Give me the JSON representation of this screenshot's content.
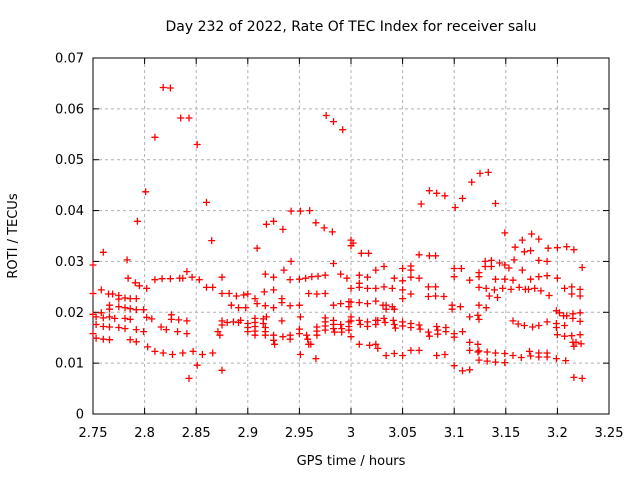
{
  "chart_data": {
    "type": "scatter",
    "title": "Day 232 of 2022, Rate Of TEC Index for receiver salu",
    "xlabel": "GPS time / hours",
    "ylabel": "ROTI / TECUs",
    "xlim": [
      2.75,
      3.25
    ],
    "ylim": [
      0,
      0.07
    ],
    "x_ticks": [
      2.75,
      2.8,
      2.85,
      2.9,
      2.95,
      3,
      3.05,
      3.1,
      3.15,
      3.2,
      3.25
    ],
    "x_tick_labels": [
      "2.75",
      "2.8",
      "2.85",
      "2.9",
      "2.95",
      "3",
      "3.05",
      "3.1",
      "3.15",
      "3.2",
      "3.25"
    ],
    "y_ticks": [
      0,
      0.01,
      0.02,
      0.03,
      0.04,
      0.05,
      0.06,
      0.07
    ],
    "y_tick_labels": [
      "0",
      "0.01",
      "0.02",
      "0.03",
      "0.04",
      "0.05",
      "0.06",
      "0.07"
    ],
    "grid": true,
    "legend": "none",
    "marker": "plus",
    "marker_color": "#ff0000",
    "grid_color": "#b0b0b0",
    "border_color": "#000000",
    "background_color": "#ffffff",
    "points": [
      [
        2.793,
        0.0379
      ],
      [
        2.801,
        0.0437
      ],
      [
        2.81,
        0.0544
      ],
      [
        2.818,
        0.0642
      ],
      [
        2.825,
        0.0641
      ],
      [
        2.835,
        0.0582
      ],
      [
        2.843,
        0.0582
      ],
      [
        2.851,
        0.053
      ],
      [
        2.86,
        0.0416
      ],
      [
        2.918,
        0.0373
      ],
      [
        2.925,
        0.0379
      ],
      [
        2.934,
        0.0363
      ],
      [
        2.942,
        0.0399
      ],
      [
        2.951,
        0.0399
      ],
      [
        2.96,
        0.04
      ],
      [
        2.966,
        0.0376
      ],
      [
        2.974,
        0.0366
      ],
      [
        2.976,
        0.0587
      ],
      [
        2.982,
        0.0358
      ],
      [
        2.983,
        0.0575
      ],
      [
        2.992,
        0.0559
      ],
      [
        3.068,
        0.0413
      ],
      [
        3.076,
        0.0439
      ],
      [
        3.083,
        0.0434
      ],
      [
        3.091,
        0.0429
      ],
      [
        3.101,
        0.0406
      ],
      [
        3.108,
        0.0424
      ],
      [
        3.117,
        0.0456
      ],
      [
        3.125,
        0.0473
      ],
      [
        3.133,
        0.0475
      ],
      [
        3.14,
        0.0414
      ],
      [
        3.149,
        0.0356
      ],
      [
        3.175,
        0.0354
      ],
      [
        3.002,
        0.0336
      ],
      [
        2.76,
        0.0318
      ],
      [
        2.865,
        0.0341
      ],
      [
        2.783,
        0.0303
      ],
      [
        2.75,
        0.0293
      ],
      [
        2.784,
        0.0267
      ],
      [
        2.791,
        0.0258
      ],
      [
        2.795,
        0.0252
      ],
      [
        2.802,
        0.0247
      ],
      [
        2.81,
        0.0264
      ],
      [
        2.817,
        0.0266
      ],
      [
        2.825,
        0.0266
      ],
      [
        2.834,
        0.0267
      ],
      [
        2.837,
        0.0267
      ],
      [
        2.846,
        0.0269
      ],
      [
        2.853,
        0.0264
      ],
      [
        2.841,
        0.028
      ],
      [
        2.758,
        0.0244
      ],
      [
        2.765,
        0.0236
      ],
      [
        2.769,
        0.0236
      ],
      [
        2.775,
        0.0233
      ],
      [
        2.775,
        0.0226
      ],
      [
        2.781,
        0.0228
      ],
      [
        2.786,
        0.0227
      ],
      [
        2.792,
        0.0227
      ],
      [
        2.75,
        0.0237
      ],
      [
        2.86,
        0.0249
      ],
      [
        2.866,
        0.0249
      ],
      [
        2.766,
        0.0214
      ],
      [
        2.766,
        0.0206
      ],
      [
        2.775,
        0.0211
      ],
      [
        2.781,
        0.0209
      ],
      [
        2.786,
        0.0207
      ],
      [
        2.792,
        0.0205
      ],
      [
        2.799,
        0.0205
      ],
      [
        2.758,
        0.0199
      ],
      [
        2.75,
        0.0196
      ],
      [
        2.753,
        0.0191
      ],
      [
        2.76,
        0.0189
      ],
      [
        2.766,
        0.0191
      ],
      [
        2.771,
        0.0188
      ],
      [
        2.781,
        0.0188
      ],
      [
        2.786,
        0.0186
      ],
      [
        2.802,
        0.019
      ],
      [
        2.807,
        0.0187
      ],
      [
        2.826,
        0.0195
      ],
      [
        2.826,
        0.0186
      ],
      [
        2.833,
        0.0185
      ],
      [
        2.841,
        0.0183
      ],
      [
        2.753,
        0.0176
      ],
      [
        2.76,
        0.0172
      ],
      [
        2.766,
        0.0171
      ],
      [
        2.775,
        0.017
      ],
      [
        2.781,
        0.0168
      ],
      [
        2.792,
        0.0166
      ],
      [
        2.799,
        0.0162
      ],
      [
        2.816,
        0.0171
      ],
      [
        2.821,
        0.0166
      ],
      [
        2.832,
        0.0162
      ],
      [
        2.841,
        0.0158
      ],
      [
        2.75,
        0.0158
      ],
      [
        2.753,
        0.0149
      ],
      [
        2.76,
        0.0147
      ],
      [
        2.766,
        0.0146
      ],
      [
        2.786,
        0.0146
      ],
      [
        2.792,
        0.0142
      ],
      [
        2.803,
        0.0132
      ],
      [
        2.81,
        0.0123
      ],
      [
        2.818,
        0.012
      ],
      [
        2.827,
        0.0117
      ],
      [
        2.837,
        0.012
      ],
      [
        2.847,
        0.0123
      ],
      [
        2.856,
        0.0117
      ],
      [
        2.866,
        0.012
      ],
      [
        2.851,
        0.0096
      ],
      [
        2.843,
        0.007
      ],
      [
        2.871,
        0.0162
      ],
      [
        2.873,
        0.0155
      ],
      [
        2.875,
        0.0086
      ],
      [
        2.909,
        0.0326
      ],
      [
        2.942,
        0.03
      ],
      [
        2.983,
        0.0296
      ],
      [
        2.875,
        0.0269
      ],
      [
        2.935,
        0.0283
      ],
      [
        2.917,
        0.0275
      ],
      [
        2.925,
        0.0269
      ],
      [
        2.941,
        0.0264
      ],
      [
        2.95,
        0.0265
      ],
      [
        2.956,
        0.0267
      ],
      [
        2.962,
        0.027
      ],
      [
        2.968,
        0.0271
      ],
      [
        2.975,
        0.0273
      ],
      [
        2.99,
        0.0275
      ],
      [
        2.996,
        0.0267
      ],
      [
        2.875,
        0.0237
      ],
      [
        2.882,
        0.0237
      ],
      [
        2.889,
        0.0232
      ],
      [
        2.896,
        0.0234
      ],
      [
        2.9,
        0.0236
      ],
      [
        2.907,
        0.0227
      ],
      [
        2.916,
        0.024
      ],
      [
        2.925,
        0.0244
      ],
      [
        2.933,
        0.0227
      ],
      [
        2.933,
        0.0219
      ],
      [
        2.941,
        0.0213
      ],
      [
        2.95,
        0.0214
      ],
      [
        2.959,
        0.0237
      ],
      [
        2.967,
        0.0236
      ],
      [
        2.975,
        0.0237
      ],
      [
        2.884,
        0.0214
      ],
      [
        2.891,
        0.0209
      ],
      [
        2.898,
        0.0209
      ],
      [
        2.909,
        0.0217
      ],
      [
        2.917,
        0.0213
      ],
      [
        2.925,
        0.0209
      ],
      [
        2.983,
        0.0214
      ],
      [
        2.99,
        0.0217
      ],
      [
        2.998,
        0.0221
      ],
      [
        2.998,
        0.0211
      ],
      [
        2.875,
        0.0183
      ],
      [
        2.875,
        0.0175
      ],
      [
        2.88,
        0.018
      ],
      [
        2.886,
        0.0181
      ],
      [
        2.891,
        0.018
      ],
      [
        2.893,
        0.0184
      ],
      [
        2.9,
        0.0178
      ],
      [
        2.9,
        0.017
      ],
      [
        2.9,
        0.0162
      ],
      [
        2.907,
        0.0188
      ],
      [
        2.907,
        0.018
      ],
      [
        2.907,
        0.0172
      ],
      [
        2.907,
        0.0163
      ],
      [
        2.907,
        0.0155
      ],
      [
        2.915,
        0.0187
      ],
      [
        2.915,
        0.0178
      ],
      [
        2.917,
        0.017
      ],
      [
        2.917,
        0.0162
      ],
      [
        2.917,
        0.0155
      ],
      [
        2.918,
        0.0191
      ],
      [
        2.925,
        0.0155
      ],
      [
        2.925,
        0.0145
      ],
      [
        2.926,
        0.0137
      ],
      [
        2.933,
        0.0183
      ],
      [
        2.934,
        0.0152
      ],
      [
        2.941,
        0.0155
      ],
      [
        2.941,
        0.0147
      ],
      [
        2.95,
        0.0158
      ],
      [
        2.95,
        0.0167
      ],
      [
        2.951,
        0.0191
      ],
      [
        2.957,
        0.0155
      ],
      [
        2.958,
        0.0147
      ],
      [
        2.959,
        0.0137
      ],
      [
        2.961,
        0.0137
      ],
      [
        2.967,
        0.0155
      ],
      [
        2.967,
        0.0163
      ],
      [
        2.967,
        0.0171
      ],
      [
        2.975,
        0.0165
      ],
      [
        2.975,
        0.0173
      ],
      [
        2.975,
        0.0181
      ],
      [
        2.975,
        0.0189
      ],
      [
        2.983,
        0.0184
      ],
      [
        2.983,
        0.0176
      ],
      [
        2.983,
        0.0168
      ],
      [
        2.984,
        0.0161
      ],
      [
        2.99,
        0.0176
      ],
      [
        2.991,
        0.0168
      ],
      [
        2.991,
        0.0161
      ],
      [
        2.998,
        0.0181
      ],
      [
        2.998,
        0.0172
      ],
      [
        2.998,
        0.0165
      ],
      [
        2.951,
        0.0117
      ],
      [
        2.966,
        0.0109
      ],
      [
        3.0,
        0.0342
      ],
      [
        3.0,
        0.0331
      ],
      [
        3.01,
        0.0316
      ],
      [
        3.017,
        0.0316
      ],
      [
        3.066,
        0.0313
      ],
      [
        3.076,
        0.0311
      ],
      [
        3.082,
        0.0311
      ],
      [
        3.024,
        0.0283
      ],
      [
        3.032,
        0.029
      ],
      [
        3.05,
        0.0286
      ],
      [
        3.058,
        0.0291
      ],
      [
        3.058,
        0.0283
      ],
      [
        3.1,
        0.0286
      ],
      [
        3.107,
        0.0286
      ],
      [
        3.1,
        0.027
      ],
      [
        3.115,
        0.0263
      ],
      [
        3.008,
        0.0273
      ],
      [
        3.016,
        0.0269
      ],
      [
        3.042,
        0.0267
      ],
      [
        3.05,
        0.0262
      ],
      [
        3.058,
        0.0269
      ],
      [
        3.066,
        0.0267
      ],
      [
        3.0,
        0.0247
      ],
      [
        3.008,
        0.0249
      ],
      [
        3.008,
        0.0257
      ],
      [
        3.016,
        0.0247
      ],
      [
        3.024,
        0.0247
      ],
      [
        3.032,
        0.025
      ],
      [
        3.04,
        0.0247
      ],
      [
        3.05,
        0.0244
      ],
      [
        3.05,
        0.0227
      ],
      [
        3.058,
        0.0236
      ],
      [
        3.075,
        0.025
      ],
      [
        3.082,
        0.025
      ],
      [
        3.075,
        0.0231
      ],
      [
        3.082,
        0.0232
      ],
      [
        3.09,
        0.0231
      ],
      [
        3.0,
        0.022
      ],
      [
        3.008,
        0.0219
      ],
      [
        3.016,
        0.0217
      ],
      [
        3.024,
        0.0222
      ],
      [
        3.031,
        0.0214
      ],
      [
        3.034,
        0.0214
      ],
      [
        3.04,
        0.0211
      ],
      [
        3.034,
        0.0206
      ],
      [
        3.042,
        0.0206
      ],
      [
        3.098,
        0.0214
      ],
      [
        3.106,
        0.0211
      ],
      [
        3.098,
        0.0206
      ],
      [
        3.115,
        0.0191
      ],
      [
        3.123,
        0.0194
      ],
      [
        3.0,
        0.0191
      ],
      [
        3.0,
        0.0183
      ],
      [
        3.008,
        0.0184
      ],
      [
        3.009,
        0.0176
      ],
      [
        3.016,
        0.0181
      ],
      [
        3.016,
        0.0172
      ],
      [
        3.024,
        0.0184
      ],
      [
        3.026,
        0.0184
      ],
      [
        3.024,
        0.0176
      ],
      [
        3.032,
        0.0188
      ],
      [
        3.033,
        0.018
      ],
      [
        3.041,
        0.0184
      ],
      [
        3.042,
        0.0176
      ],
      [
        3.043,
        0.0169
      ],
      [
        3.05,
        0.0181
      ],
      [
        3.05,
        0.0173
      ],
      [
        3.058,
        0.0178
      ],
      [
        3.058,
        0.017
      ],
      [
        3.066,
        0.0175
      ],
      [
        3.067,
        0.0167
      ],
      [
        3.075,
        0.0161
      ],
      [
        3.076,
        0.0153
      ],
      [
        3.083,
        0.0172
      ],
      [
        3.084,
        0.0165
      ],
      [
        3.084,
        0.0157
      ],
      [
        3.092,
        0.017
      ],
      [
        3.092,
        0.0162
      ],
      [
        3.1,
        0.0158
      ],
      [
        3.1,
        0.0151
      ],
      [
        3.108,
        0.0162
      ],
      [
        3.0,
        0.0152
      ],
      [
        3.008,
        0.0137
      ],
      [
        3.018,
        0.0135
      ],
      [
        3.024,
        0.0137
      ],
      [
        3.026,
        0.0129
      ],
      [
        3.034,
        0.0115
      ],
      [
        3.042,
        0.0119
      ],
      [
        3.05,
        0.0115
      ],
      [
        3.058,
        0.0125
      ],
      [
        3.066,
        0.0125
      ],
      [
        3.083,
        0.0115
      ],
      [
        3.091,
        0.0117
      ],
      [
        3.1,
        0.0095
      ],
      [
        3.108,
        0.0085
      ],
      [
        3.115,
        0.0087
      ],
      [
        3.115,
        0.0125
      ],
      [
        3.123,
        0.0122
      ],
      [
        3.123,
        0.0137
      ],
      [
        3.115,
        0.0141
      ],
      [
        3.166,
        0.0342
      ],
      [
        3.182,
        0.0344
      ],
      [
        3.159,
        0.0328
      ],
      [
        3.168,
        0.0319
      ],
      [
        3.174,
        0.0321
      ],
      [
        3.191,
        0.0326
      ],
      [
        3.2,
        0.0327
      ],
      [
        3.209,
        0.0329
      ],
      [
        3.216,
        0.0323
      ],
      [
        3.13,
        0.03
      ],
      [
        3.136,
        0.0302
      ],
      [
        3.13,
        0.029
      ],
      [
        3.136,
        0.029
      ],
      [
        3.144,
        0.0297
      ],
      [
        3.149,
        0.0293
      ],
      [
        3.153,
        0.0287
      ],
      [
        3.158,
        0.0303
      ],
      [
        3.166,
        0.0283
      ],
      [
        3.182,
        0.0302
      ],
      [
        3.19,
        0.03
      ],
      [
        3.224,
        0.0288
      ],
      [
        3.124,
        0.0278
      ],
      [
        3.124,
        0.027
      ],
      [
        3.14,
        0.0265
      ],
      [
        3.149,
        0.0265
      ],
      [
        3.157,
        0.0263
      ],
      [
        3.174,
        0.0265
      ],
      [
        3.182,
        0.027
      ],
      [
        3.19,
        0.0272
      ],
      [
        3.2,
        0.0267
      ],
      [
        3.124,
        0.0249
      ],
      [
        3.131,
        0.0247
      ],
      [
        3.139,
        0.0244
      ],
      [
        3.147,
        0.0247
      ],
      [
        3.155,
        0.0245
      ],
      [
        3.163,
        0.0249
      ],
      [
        3.169,
        0.0245
      ],
      [
        3.172,
        0.0245
      ],
      [
        3.178,
        0.0247
      ],
      [
        3.184,
        0.0242
      ],
      [
        3.192,
        0.0233
      ],
      [
        3.207,
        0.0247
      ],
      [
        3.214,
        0.025
      ],
      [
        3.222,
        0.0245
      ],
      [
        3.214,
        0.0236
      ],
      [
        3.222,
        0.0232
      ],
      [
        3.134,
        0.0232
      ],
      [
        3.142,
        0.0229
      ],
      [
        3.124,
        0.0214
      ],
      [
        3.131,
        0.0209
      ],
      [
        3.199,
        0.0203
      ],
      [
        3.202,
        0.0199
      ],
      [
        3.206,
        0.0193
      ],
      [
        3.209,
        0.0193
      ],
      [
        3.215,
        0.0197
      ],
      [
        3.222,
        0.0199
      ],
      [
        3.215,
        0.0188
      ],
      [
        3.222,
        0.0182
      ],
      [
        3.124,
        0.0186
      ],
      [
        3.157,
        0.0183
      ],
      [
        3.162,
        0.0177
      ],
      [
        3.168,
        0.0174
      ],
      [
        3.176,
        0.0171
      ],
      [
        3.182,
        0.0174
      ],
      [
        3.19,
        0.0181
      ],
      [
        3.199,
        0.0178
      ],
      [
        3.199,
        0.017
      ],
      [
        3.207,
        0.0174
      ],
      [
        3.2,
        0.0156
      ],
      [
        3.207,
        0.0153
      ],
      [
        3.214,
        0.0154
      ],
      [
        3.222,
        0.0156
      ],
      [
        3.215,
        0.0141
      ],
      [
        3.218,
        0.0141
      ],
      [
        3.223,
        0.0138
      ],
      [
        3.216,
        0.0133
      ],
      [
        3.124,
        0.0124
      ],
      [
        3.132,
        0.0122
      ],
      [
        3.14,
        0.012
      ],
      [
        3.149,
        0.0119
      ],
      [
        3.157,
        0.0115
      ],
      [
        3.165,
        0.0111
      ],
      [
        3.173,
        0.0123
      ],
      [
        3.174,
        0.0114
      ],
      [
        3.182,
        0.012
      ],
      [
        3.182,
        0.0112
      ],
      [
        3.19,
        0.012
      ],
      [
        3.19,
        0.0112
      ],
      [
        3.199,
        0.0109
      ],
      [
        3.208,
        0.0105
      ],
      [
        3.124,
        0.0106
      ],
      [
        3.132,
        0.0104
      ],
      [
        3.14,
        0.0102
      ],
      [
        3.149,
        0.0101
      ],
      [
        3.216,
        0.0072
      ],
      [
        3.224,
        0.007
      ]
    ]
  }
}
